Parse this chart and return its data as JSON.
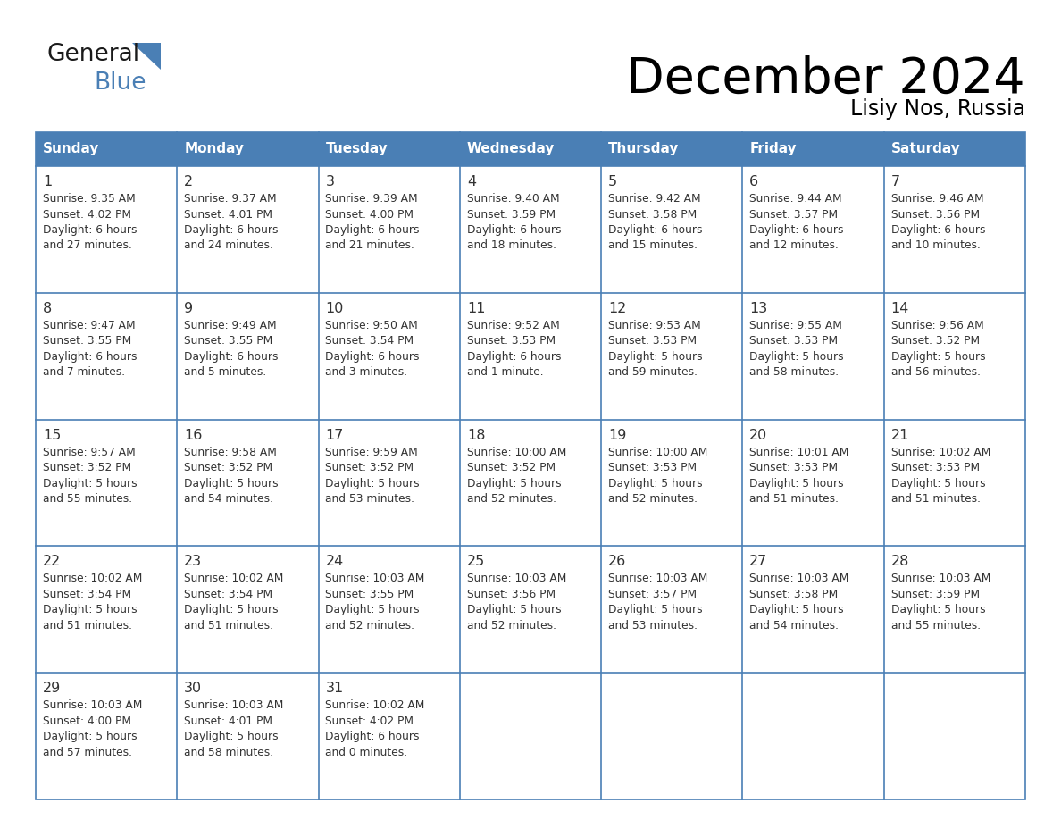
{
  "title": "December 2024",
  "subtitle": "Lisiy Nos, Russia",
  "days_of_week": [
    "Sunday",
    "Monday",
    "Tuesday",
    "Wednesday",
    "Thursday",
    "Friday",
    "Saturday"
  ],
  "header_bg": "#4A7FB5",
  "header_text": "#FFFFFF",
  "border_color": "#4A7FB5",
  "day_num_color": "#333333",
  "text_color": "#333333",
  "calendar_data": [
    [
      {
        "day": 1,
        "sunrise": "9:35 AM",
        "sunset": "4:02 PM",
        "daylight_line1": "Daylight: 6 hours",
        "daylight_line2": "and 27 minutes."
      },
      {
        "day": 2,
        "sunrise": "9:37 AM",
        "sunset": "4:01 PM",
        "daylight_line1": "Daylight: 6 hours",
        "daylight_line2": "and 24 minutes."
      },
      {
        "day": 3,
        "sunrise": "9:39 AM",
        "sunset": "4:00 PM",
        "daylight_line1": "Daylight: 6 hours",
        "daylight_line2": "and 21 minutes."
      },
      {
        "day": 4,
        "sunrise": "9:40 AM",
        "sunset": "3:59 PM",
        "daylight_line1": "Daylight: 6 hours",
        "daylight_line2": "and 18 minutes."
      },
      {
        "day": 5,
        "sunrise": "9:42 AM",
        "sunset": "3:58 PM",
        "daylight_line1": "Daylight: 6 hours",
        "daylight_line2": "and 15 minutes."
      },
      {
        "day": 6,
        "sunrise": "9:44 AM",
        "sunset": "3:57 PM",
        "daylight_line1": "Daylight: 6 hours",
        "daylight_line2": "and 12 minutes."
      },
      {
        "day": 7,
        "sunrise": "9:46 AM",
        "sunset": "3:56 PM",
        "daylight_line1": "Daylight: 6 hours",
        "daylight_line2": "and 10 minutes."
      }
    ],
    [
      {
        "day": 8,
        "sunrise": "9:47 AM",
        "sunset": "3:55 PM",
        "daylight_line1": "Daylight: 6 hours",
        "daylight_line2": "and 7 minutes."
      },
      {
        "day": 9,
        "sunrise": "9:49 AM",
        "sunset": "3:55 PM",
        "daylight_line1": "Daylight: 6 hours",
        "daylight_line2": "and 5 minutes."
      },
      {
        "day": 10,
        "sunrise": "9:50 AM",
        "sunset": "3:54 PM",
        "daylight_line1": "Daylight: 6 hours",
        "daylight_line2": "and 3 minutes."
      },
      {
        "day": 11,
        "sunrise": "9:52 AM",
        "sunset": "3:53 PM",
        "daylight_line1": "Daylight: 6 hours",
        "daylight_line2": "and 1 minute."
      },
      {
        "day": 12,
        "sunrise": "9:53 AM",
        "sunset": "3:53 PM",
        "daylight_line1": "Daylight: 5 hours",
        "daylight_line2": "and 59 minutes."
      },
      {
        "day": 13,
        "sunrise": "9:55 AM",
        "sunset": "3:53 PM",
        "daylight_line1": "Daylight: 5 hours",
        "daylight_line2": "and 58 minutes."
      },
      {
        "day": 14,
        "sunrise": "9:56 AM",
        "sunset": "3:52 PM",
        "daylight_line1": "Daylight: 5 hours",
        "daylight_line2": "and 56 minutes."
      }
    ],
    [
      {
        "day": 15,
        "sunrise": "9:57 AM",
        "sunset": "3:52 PM",
        "daylight_line1": "Daylight: 5 hours",
        "daylight_line2": "and 55 minutes."
      },
      {
        "day": 16,
        "sunrise": "9:58 AM",
        "sunset": "3:52 PM",
        "daylight_line1": "Daylight: 5 hours",
        "daylight_line2": "and 54 minutes."
      },
      {
        "day": 17,
        "sunrise": "9:59 AM",
        "sunset": "3:52 PM",
        "daylight_line1": "Daylight: 5 hours",
        "daylight_line2": "and 53 minutes."
      },
      {
        "day": 18,
        "sunrise": "10:00 AM",
        "sunset": "3:52 PM",
        "daylight_line1": "Daylight: 5 hours",
        "daylight_line2": "and 52 minutes."
      },
      {
        "day": 19,
        "sunrise": "10:00 AM",
        "sunset": "3:53 PM",
        "daylight_line1": "Daylight: 5 hours",
        "daylight_line2": "and 52 minutes."
      },
      {
        "day": 20,
        "sunrise": "10:01 AM",
        "sunset": "3:53 PM",
        "daylight_line1": "Daylight: 5 hours",
        "daylight_line2": "and 51 minutes."
      },
      {
        "day": 21,
        "sunrise": "10:02 AM",
        "sunset": "3:53 PM",
        "daylight_line1": "Daylight: 5 hours",
        "daylight_line2": "and 51 minutes."
      }
    ],
    [
      {
        "day": 22,
        "sunrise": "10:02 AM",
        "sunset": "3:54 PM",
        "daylight_line1": "Daylight: 5 hours",
        "daylight_line2": "and 51 minutes."
      },
      {
        "day": 23,
        "sunrise": "10:02 AM",
        "sunset": "3:54 PM",
        "daylight_line1": "Daylight: 5 hours",
        "daylight_line2": "and 51 minutes."
      },
      {
        "day": 24,
        "sunrise": "10:03 AM",
        "sunset": "3:55 PM",
        "daylight_line1": "Daylight: 5 hours",
        "daylight_line2": "and 52 minutes."
      },
      {
        "day": 25,
        "sunrise": "10:03 AM",
        "sunset": "3:56 PM",
        "daylight_line1": "Daylight: 5 hours",
        "daylight_line2": "and 52 minutes."
      },
      {
        "day": 26,
        "sunrise": "10:03 AM",
        "sunset": "3:57 PM",
        "daylight_line1": "Daylight: 5 hours",
        "daylight_line2": "and 53 minutes."
      },
      {
        "day": 27,
        "sunrise": "10:03 AM",
        "sunset": "3:58 PM",
        "daylight_line1": "Daylight: 5 hours",
        "daylight_line2": "and 54 minutes."
      },
      {
        "day": 28,
        "sunrise": "10:03 AM",
        "sunset": "3:59 PM",
        "daylight_line1": "Daylight: 5 hours",
        "daylight_line2": "and 55 minutes."
      }
    ],
    [
      {
        "day": 29,
        "sunrise": "10:03 AM",
        "sunset": "4:00 PM",
        "daylight_line1": "Daylight: 5 hours",
        "daylight_line2": "and 57 minutes."
      },
      {
        "day": 30,
        "sunrise": "10:03 AM",
        "sunset": "4:01 PM",
        "daylight_line1": "Daylight: 5 hours",
        "daylight_line2": "and 58 minutes."
      },
      {
        "day": 31,
        "sunrise": "10:02 AM",
        "sunset": "4:02 PM",
        "daylight_line1": "Daylight: 6 hours",
        "daylight_line2": "and 0 minutes."
      },
      null,
      null,
      null,
      null
    ]
  ]
}
